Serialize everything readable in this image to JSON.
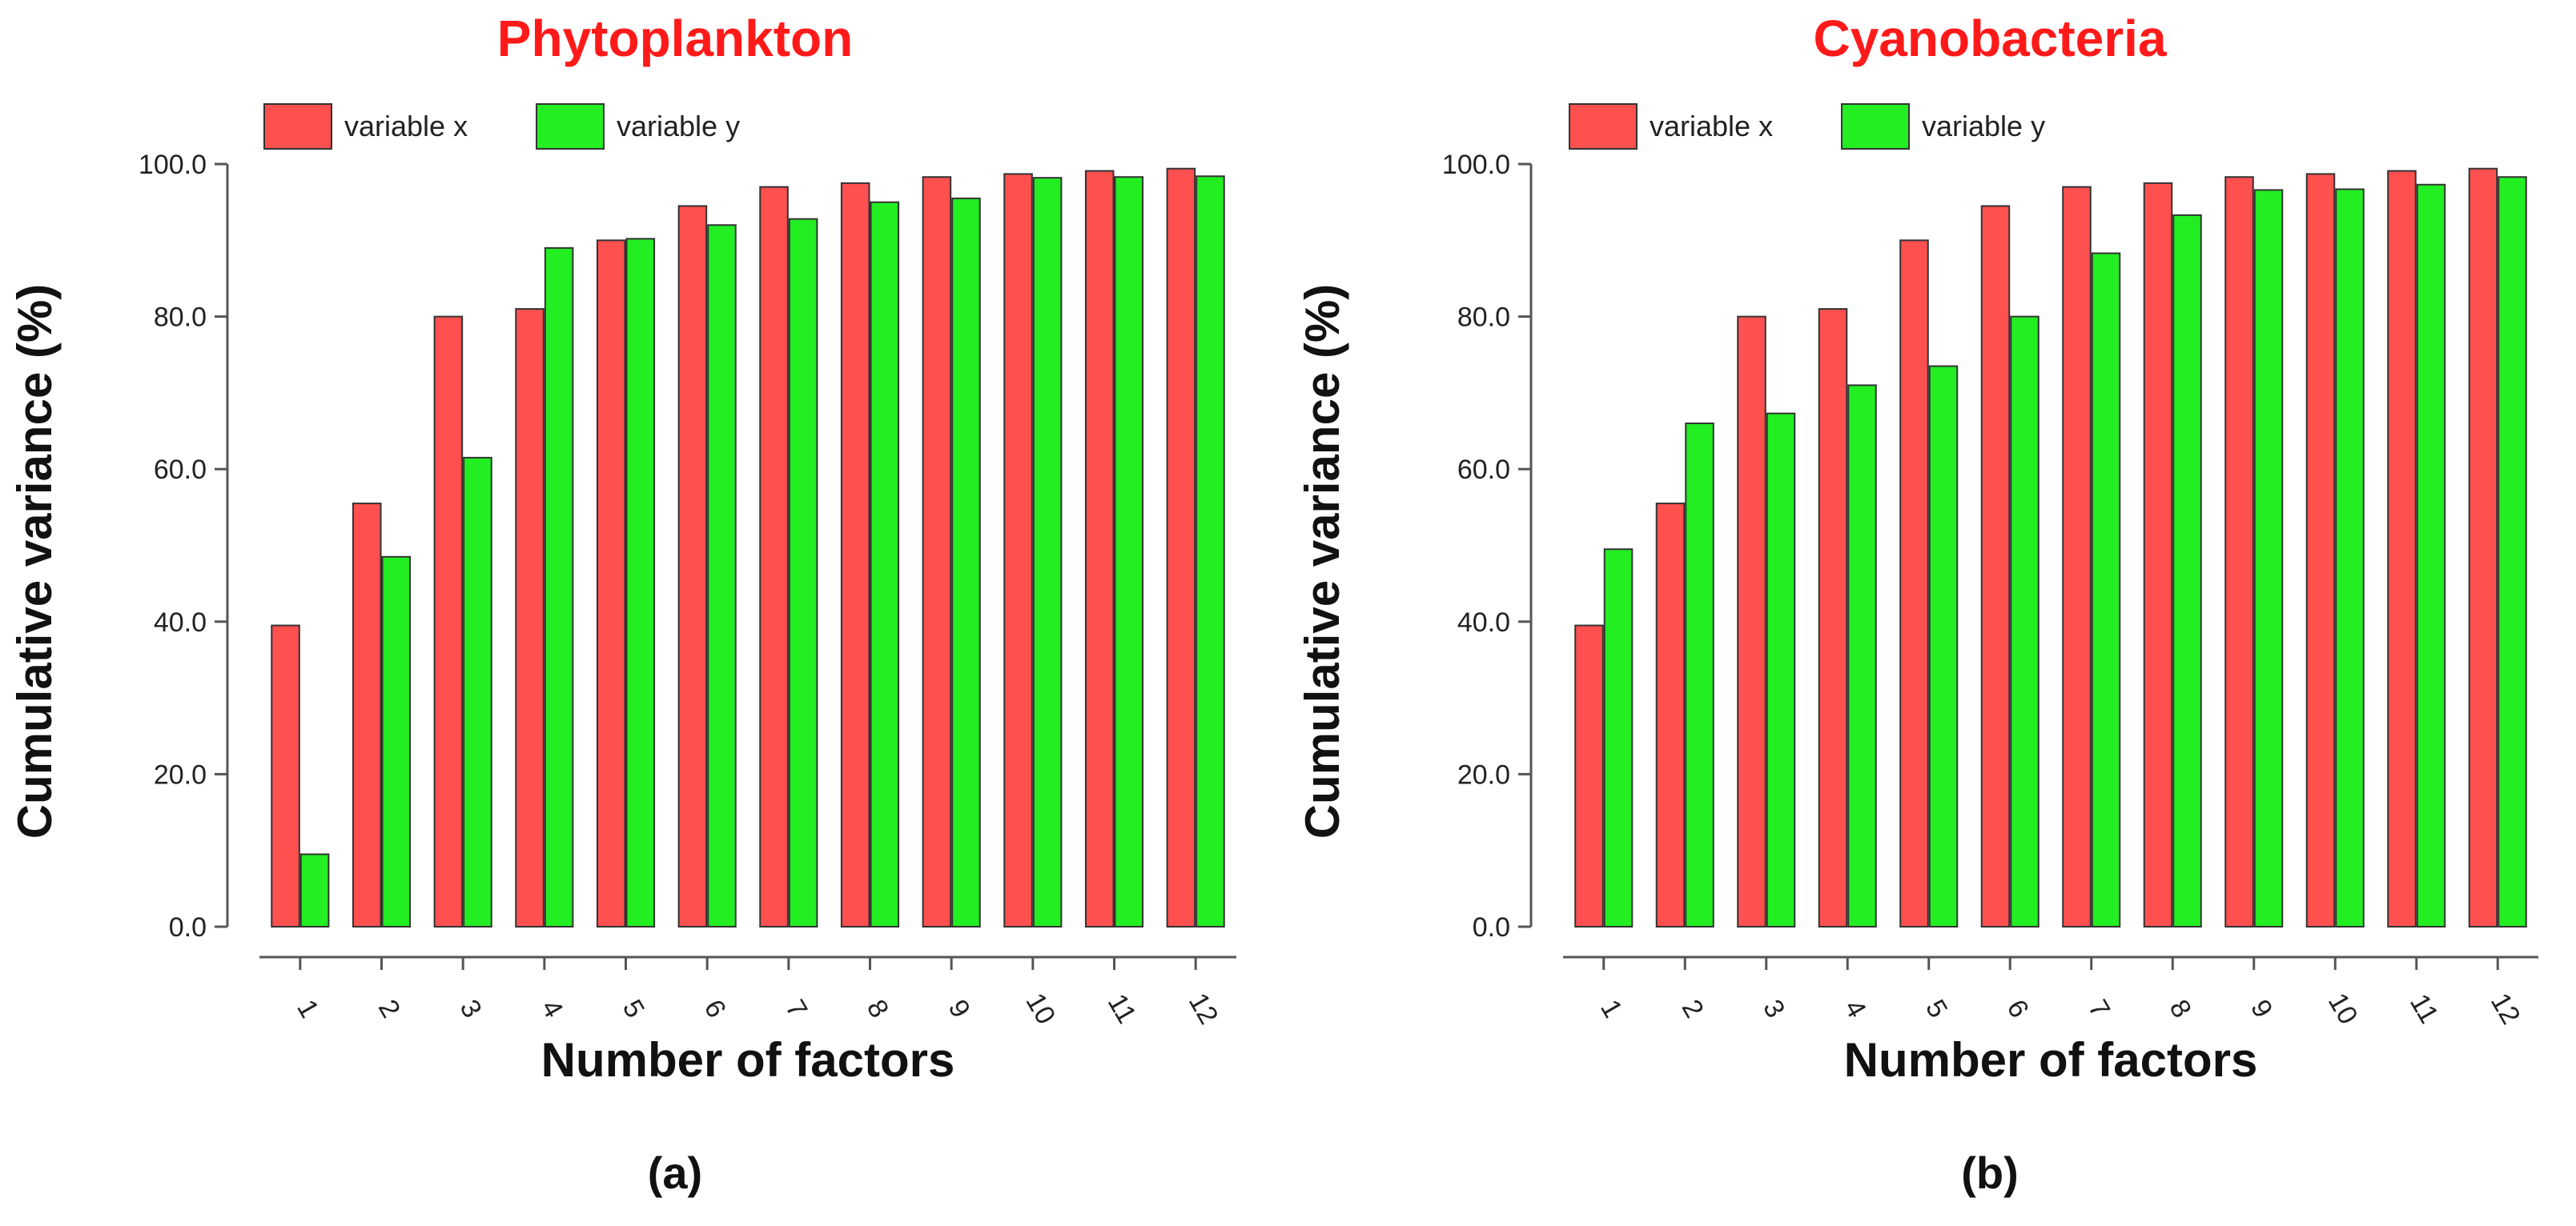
{
  "chart_data": [
    {
      "type": "bar",
      "title": "Phytoplankton",
      "caption": "(a)",
      "xlabel": "Number of factors",
      "ylabel": "Cumulative variance (%)",
      "ylim": [
        0,
        100
      ],
      "yticks": [
        "0.0",
        "20.0",
        "40.0",
        "60.0",
        "80.0",
        "100.0"
      ],
      "categories": [
        "1",
        "2",
        "3",
        "4",
        "5",
        "6",
        "7",
        "8",
        "9",
        "10",
        "11",
        "12"
      ],
      "series": [
        {
          "name": "variable x",
          "color": "#ff5050",
          "values": [
            39.5,
            55.5,
            80,
            81,
            90,
            94.5,
            97,
            97.5,
            98.3,
            98.7,
            99.1,
            99.4
          ]
        },
        {
          "name": "variable y",
          "color": "#22ee22",
          "values": [
            9.5,
            48.5,
            61.5,
            89,
            90.2,
            92,
            92.8,
            95,
            95.5,
            98.2,
            98.3,
            98.4
          ]
        }
      ],
      "legend": "top-left",
      "grid": false
    },
    {
      "type": "bar",
      "title": "Cyanobacteria",
      "caption": "(b)",
      "xlabel": "Number of factors",
      "ylabel": "Cumulative variance (%)",
      "ylim": [
        0,
        100
      ],
      "yticks": [
        "0.0",
        "20.0",
        "40.0",
        "60.0",
        "80.0",
        "100.0"
      ],
      "categories": [
        "1",
        "2",
        "3",
        "4",
        "5",
        "6",
        "7",
        "8",
        "9",
        "10",
        "11",
        "12"
      ],
      "series": [
        {
          "name": "variable x",
          "color": "#ff5050",
          "values": [
            39.5,
            55.5,
            80,
            81,
            90,
            94.5,
            97,
            97.5,
            98.3,
            98.7,
            99.1,
            99.4
          ]
        },
        {
          "name": "variable y",
          "color": "#22ee22",
          "values": [
            49.5,
            66,
            67.3,
            71,
            73.5,
            80,
            88.3,
            93.3,
            96.6,
            96.7,
            97.3,
            98.3
          ]
        }
      ],
      "legend": "top-left",
      "grid": false
    }
  ]
}
